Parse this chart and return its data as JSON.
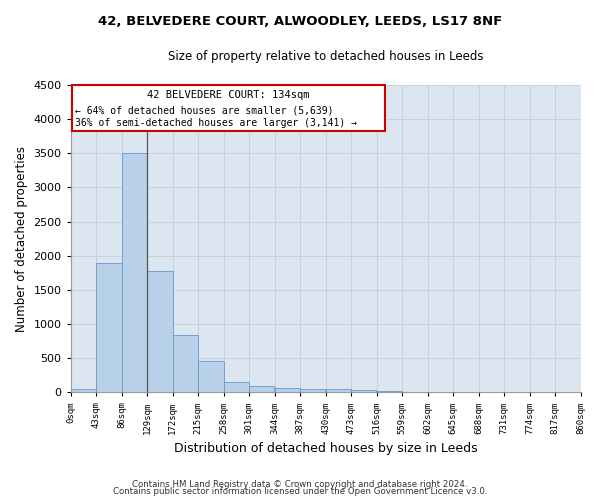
{
  "title1": "42, BELVEDERE COURT, ALWOODLEY, LEEDS, LS17 8NF",
  "title2": "Size of property relative to detached houses in Leeds",
  "xlabel": "Distribution of detached houses by size in Leeds",
  "ylabel": "Number of detached properties",
  "annotation_line1": "42 BELVEDERE COURT: 134sqm",
  "annotation_line2": "← 64% of detached houses are smaller (5,639)",
  "annotation_line3": "36% of semi-detached houses are larger (3,141) →",
  "property_size_sqm": 134,
  "bin_edges": [
    0,
    43,
    86,
    129,
    172,
    215,
    258,
    301,
    344,
    387,
    430,
    473,
    516,
    559,
    602,
    645,
    688,
    731,
    774,
    817,
    860
  ],
  "bar_values": [
    45,
    1900,
    3500,
    1780,
    840,
    460,
    155,
    100,
    70,
    55,
    45,
    30,
    18,
    12,
    10,
    8,
    6,
    5,
    4,
    3
  ],
  "bar_color": "#b8d0e8",
  "bar_edgecolor": "#6699cc",
  "annotation_box_edgecolor": "#cc0000",
  "grid_color": "#c8d0dc",
  "background_color": "#dce6f0",
  "footer1": "Contains HM Land Registry data © Crown copyright and database right 2024.",
  "footer2": "Contains public sector information licensed under the Open Government Licence v3.0.",
  "ylim": [
    0,
    4500
  ],
  "yticks": [
    0,
    500,
    1000,
    1500,
    2000,
    2500,
    3000,
    3500,
    4000,
    4500
  ]
}
